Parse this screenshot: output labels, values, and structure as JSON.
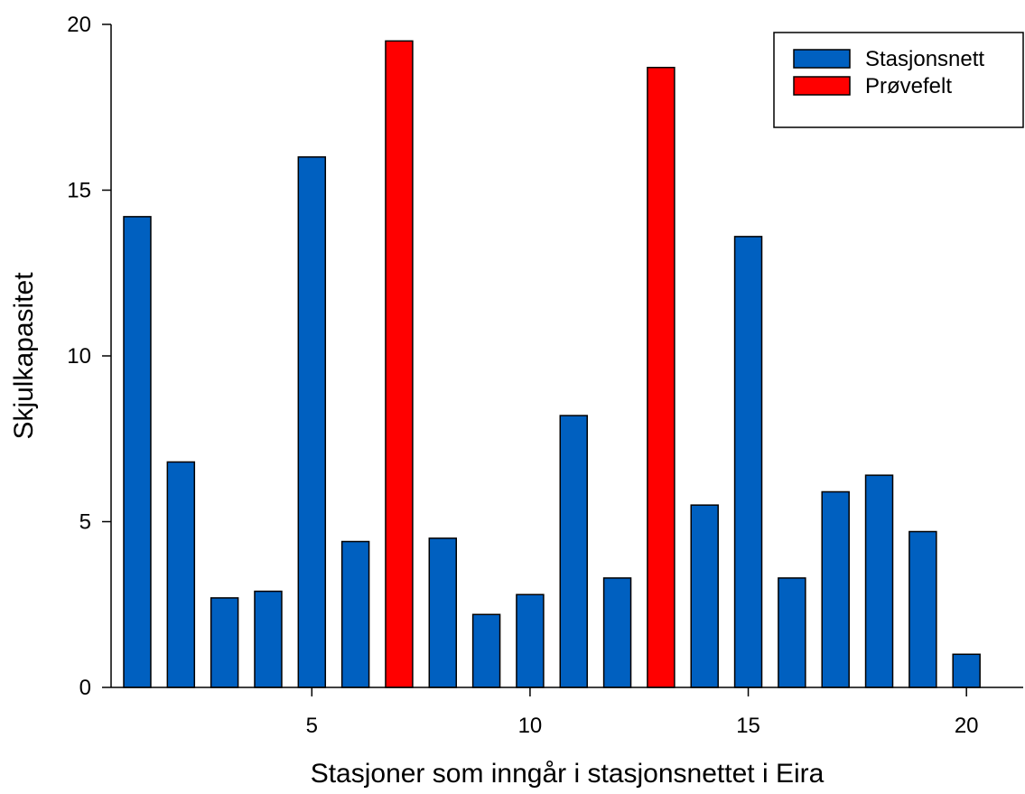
{
  "chart_data": {
    "type": "bar",
    "xlabel": "Stasjoner som inngår i stasjonsnettet i Eira",
    "ylabel": "Skjulkapasitet",
    "xlim": [
      0.4,
      21.3
    ],
    "ylim": [
      0,
      20
    ],
    "x_ticks": [
      5,
      10,
      15,
      20
    ],
    "y_ticks": [
      0,
      5,
      10,
      15,
      20
    ],
    "grid": false,
    "legend_position": "top-right",
    "series": [
      {
        "name": "Stasjonsnett",
        "color": "#0060c0",
        "points": [
          {
            "x": 1,
            "y": 14.2
          },
          {
            "x": 2,
            "y": 6.8
          },
          {
            "x": 3,
            "y": 2.7
          },
          {
            "x": 4,
            "y": 2.9
          },
          {
            "x": 5,
            "y": 16.0
          },
          {
            "x": 6,
            "y": 4.4
          },
          {
            "x": 8,
            "y": 4.5
          },
          {
            "x": 9,
            "y": 2.2
          },
          {
            "x": 10,
            "y": 2.8
          },
          {
            "x": 11,
            "y": 8.2
          },
          {
            "x": 12,
            "y": 3.3
          },
          {
            "x": 14,
            "y": 5.5
          },
          {
            "x": 15,
            "y": 13.6
          },
          {
            "x": 16,
            "y": 3.3
          },
          {
            "x": 17,
            "y": 5.9
          },
          {
            "x": 18,
            "y": 6.4
          },
          {
            "x": 19,
            "y": 4.7
          },
          {
            "x": 20,
            "y": 1.0
          }
        ]
      },
      {
        "name": "Prøvefelt",
        "color": "#ff0000",
        "points": [
          {
            "x": 7,
            "y": 19.5
          },
          {
            "x": 13,
            "y": 18.7
          }
        ]
      }
    ]
  }
}
